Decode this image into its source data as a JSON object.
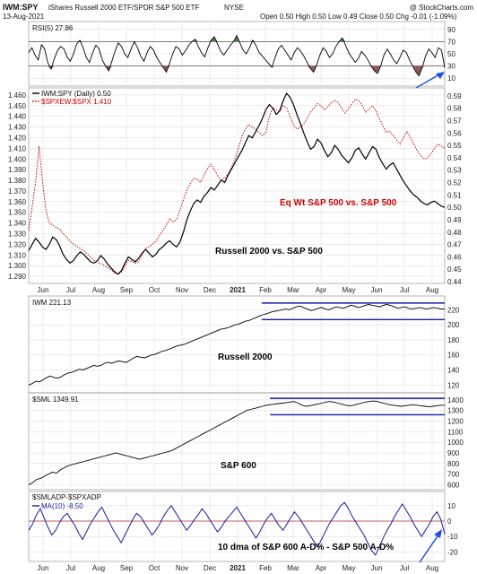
{
  "header": {
    "symbol": "IWM:SPY",
    "description": "iShares Russell 2000 ETF/SPDR S&P 500 ETF",
    "exchange": "NYSE",
    "date": "13-Aug-2021",
    "ohlc": "Open 0.50  High 0.50  Low 0.49  Close 0.50  Chg -0.01 (-1.09%)",
    "watermark": "@ StockCharts.com"
  },
  "colors": {
    "black": "#000000",
    "red": "#cc0000",
    "blue": "#1a1aa6",
    "arrow": "#1f4fe0",
    "green_fill": "#4f7f4f",
    "brown_fill": "#8b5a5a",
    "grid": "#d9d9d9",
    "panel_border": "#888888"
  },
  "x_axis": {
    "months": [
      "Jun",
      "Jul",
      "Aug",
      "Sep",
      "Oct",
      "Nov",
      "Dec",
      "2021",
      "Feb",
      "Mar",
      "Apr",
      "May",
      "Jun",
      "Jul",
      "Aug"
    ]
  },
  "chart_data": [
    {
      "id": "rsi",
      "type": "line",
      "title": "RSI(5) 27.86",
      "ylim": [
        0,
        100
      ],
      "y_ticks": [
        10,
        30,
        50,
        70,
        90
      ],
      "reference_lines": [
        30,
        70
      ],
      "overbought_regions": [
        "Nov",
        "Dec",
        "Mar",
        "May-Jun"
      ],
      "oversold_regions": [
        "Jul",
        "Sep",
        "Mar",
        "Jul"
      ],
      "values": [
        52,
        60,
        48,
        40,
        65,
        58,
        35,
        25,
        42,
        55,
        62,
        58,
        45,
        38,
        50,
        66,
        72,
        60,
        44,
        36,
        52,
        64,
        58,
        40,
        30,
        22,
        38,
        55,
        68,
        62,
        50,
        44,
        58,
        70,
        60,
        46,
        38,
        52,
        62,
        56,
        44,
        36,
        28,
        20,
        34,
        50,
        62,
        58,
        48,
        55,
        64,
        70,
        74,
        62,
        52,
        45,
        60,
        72,
        78,
        66,
        54,
        48,
        56,
        64,
        70,
        80,
        68,
        56,
        50,
        60,
        72,
        64,
        52,
        46,
        40,
        34,
        28,
        44,
        58,
        64,
        56,
        48,
        40,
        52,
        60,
        54,
        46,
        36,
        26,
        20,
        32,
        48,
        60,
        54,
        44,
        50,
        62,
        70,
        76,
        64,
        52,
        44,
        36,
        42,
        54,
        48,
        40,
        30,
        22,
        18,
        30,
        48,
        58,
        50,
        40,
        34,
        44,
        56,
        52,
        40,
        30,
        20,
        14,
        28,
        46,
        58,
        52,
        44,
        60,
        56,
        27.86
      ]
    },
    {
      "id": "ratio",
      "type": "line",
      "ylim": [
        1.285,
        1.465
      ],
      "y2lim": [
        0.44,
        0.595
      ],
      "y_ticks": [
        1.29,
        1.3,
        1.31,
        1.32,
        1.33,
        1.34,
        1.35,
        1.36,
        1.37,
        1.38,
        1.39,
        1.4,
        1.41,
        1.42,
        1.43,
        1.44,
        1.45,
        1.46
      ],
      "y2_ticks": [
        0.44,
        0.45,
        0.46,
        0.47,
        0.48,
        0.49,
        0.5,
        0.51,
        0.52,
        0.53,
        0.54,
        0.55,
        0.56,
        0.57,
        0.58,
        0.59
      ],
      "series": [
        {
          "name": "IWM:SPY (Daily) 0.50",
          "color": "#000000",
          "style": "solid",
          "values": [
            0.465,
            0.47,
            0.475,
            0.472,
            0.468,
            0.466,
            0.47,
            0.476,
            0.474,
            0.469,
            0.462,
            0.458,
            0.455,
            0.457,
            0.461,
            0.464,
            0.462,
            0.459,
            0.456,
            0.455,
            0.457,
            0.461,
            0.458,
            0.454,
            0.451,
            0.448,
            0.446,
            0.449,
            0.455,
            0.46,
            0.458,
            0.456,
            0.459,
            0.463,
            0.466,
            0.463,
            0.46,
            0.462,
            0.466,
            0.468,
            0.471,
            0.473,
            0.47,
            0.468,
            0.472,
            0.48,
            0.49,
            0.497,
            0.503,
            0.506,
            0.504,
            0.509,
            0.512,
            0.516,
            0.514,
            0.518,
            0.522,
            0.52,
            0.526,
            0.531,
            0.536,
            0.541,
            0.546,
            0.552,
            0.558,
            0.556,
            0.561,
            0.566,
            0.572,
            0.579,
            0.583,
            0.58,
            0.575,
            0.578,
            0.586,
            0.592,
            0.589,
            0.583,
            0.575,
            0.568,
            0.56,
            0.553,
            0.547,
            0.549,
            0.555,
            0.552,
            0.546,
            0.541,
            0.544,
            0.55,
            0.547,
            0.542,
            0.539,
            0.536,
            0.54,
            0.546,
            0.548,
            0.543,
            0.539,
            0.544,
            0.549,
            0.547,
            0.54,
            0.535,
            0.531,
            0.534,
            0.536,
            0.531,
            0.526,
            0.521,
            0.517,
            0.513,
            0.51,
            0.508,
            0.505,
            0.503,
            0.502,
            0.504,
            0.505,
            0.503,
            0.501,
            0.5
          ]
        },
        {
          "name": "$SPXEW:$SPX 1.410",
          "color": "#cc0000",
          "style": "dotted",
          "values": [
            1.333,
            1.355,
            1.378,
            1.412,
            1.38,
            1.352,
            1.34,
            1.338,
            1.336,
            1.334,
            1.33,
            1.327,
            1.323,
            1.32,
            1.318,
            1.316,
            1.314,
            1.311,
            1.308,
            1.305,
            1.303,
            1.302,
            1.3,
            1.298,
            1.296,
            1.293,
            1.292,
            1.294,
            1.3,
            1.305,
            1.304,
            1.302,
            1.304,
            1.31,
            1.316,
            1.318,
            1.32,
            1.323,
            1.328,
            1.333,
            1.338,
            1.344,
            1.341,
            1.343,
            1.352,
            1.362,
            1.371,
            1.377,
            1.382,
            1.381,
            1.378,
            1.385,
            1.391,
            1.395,
            1.39,
            1.384,
            1.38,
            1.382,
            1.386,
            1.392,
            1.4,
            1.41,
            1.421,
            1.428,
            1.432,
            1.43,
            1.428,
            1.425,
            1.422,
            1.425,
            1.44,
            1.448,
            1.446,
            1.444,
            1.45,
            1.448,
            1.44,
            1.432,
            1.428,
            1.43,
            1.433,
            1.438,
            1.444,
            1.448,
            1.452,
            1.45,
            1.446,
            1.449,
            1.453,
            1.455,
            1.453,
            1.448,
            1.443,
            1.447,
            1.452,
            1.456,
            1.455,
            1.45,
            1.444,
            1.447,
            1.45,
            1.445,
            1.438,
            1.431,
            1.425,
            1.426,
            1.422,
            1.418,
            1.414,
            1.42,
            1.426,
            1.42,
            1.414,
            1.408,
            1.403,
            1.4,
            1.401,
            1.405,
            1.41,
            1.414,
            1.412,
            1.41
          ]
        }
      ],
      "annotations": [
        "Eq Wt S&P 500 vs. S&P 500",
        "Russell 2000 vs. S&P 500"
      ]
    },
    {
      "id": "iwm",
      "type": "line",
      "title": "IWM 221.13",
      "annotation": "Russell 2000",
      "ylim": [
        112,
        236
      ],
      "y_ticks": [
        120,
        140,
        160,
        180,
        200,
        220
      ],
      "channel": {
        "upper": 229,
        "lower": 207
      },
      "values": [
        120,
        122,
        125,
        124,
        127,
        130,
        132,
        130,
        129,
        131,
        134,
        136,
        137,
        139,
        141,
        140,
        142,
        144,
        146,
        145,
        146,
        149,
        150,
        149,
        151,
        152,
        151,
        150,
        153,
        156,
        158,
        157,
        156,
        158,
        160,
        161,
        163,
        165,
        166,
        168,
        170,
        172,
        173,
        174,
        176,
        178,
        180,
        182,
        184,
        186,
        188,
        190,
        192,
        194,
        195,
        196,
        198,
        200,
        201,
        203,
        205,
        206,
        208,
        210,
        212,
        214,
        215,
        217,
        218,
        219,
        220,
        221,
        220,
        222,
        224,
        225,
        223,
        221,
        219,
        220,
        222,
        223,
        221,
        220,
        222,
        224,
        223,
        222,
        224,
        226,
        225,
        223,
        224,
        226,
        227,
        226,
        225,
        224,
        226,
        227,
        226,
        224,
        222,
        223,
        224,
        222,
        221,
        222,
        223,
        222,
        221,
        222,
        223,
        222,
        221,
        221.13
      ]
    },
    {
      "id": "sml",
      "type": "line",
      "title": "$SML 1349.91",
      "annotation": "S&P 600",
      "ylim": [
        570,
        1450
      ],
      "y_ticks": [
        600,
        700,
        800,
        900,
        1000,
        1100,
        1200,
        1300,
        1400
      ],
      "channel": {
        "upper": 1415,
        "lower": 1260
      },
      "values": [
        600,
        620,
        650,
        660,
        680,
        700,
        720,
        710,
        740,
        760,
        780,
        790,
        800,
        810,
        820,
        830,
        840,
        850,
        860,
        870,
        880,
        890,
        900,
        890,
        880,
        870,
        860,
        850,
        840,
        850,
        860,
        870,
        880,
        890,
        900,
        910,
        920,
        940,
        960,
        980,
        1000,
        1020,
        1040,
        1060,
        1080,
        1100,
        1120,
        1140,
        1160,
        1180,
        1200,
        1220,
        1240,
        1260,
        1280,
        1300,
        1310,
        1320,
        1330,
        1340,
        1350,
        1355,
        1360,
        1365,
        1370,
        1375,
        1380,
        1385,
        1370,
        1350,
        1340,
        1345,
        1355,
        1360,
        1370,
        1380,
        1385,
        1380,
        1370,
        1360,
        1350,
        1345,
        1350,
        1360,
        1370,
        1380,
        1385,
        1390,
        1385,
        1375,
        1365,
        1355,
        1350,
        1345,
        1340,
        1345,
        1350,
        1355,
        1350,
        1345,
        1340,
        1335,
        1340,
        1345,
        1350,
        1349.91
      ]
    },
    {
      "id": "ad",
      "type": "line",
      "title": "$SMLADP-$SPXADP",
      "series_label": "MA(10) -8.50",
      "annotation": "10 dma of S&P 600 A-D% - S&P 500 A-D%",
      "ylim": [
        -25,
        18
      ],
      "y_ticks": [
        -20,
        -10,
        0,
        10
      ],
      "reference_lines": [
        0
      ],
      "values": [
        -6,
        -2,
        4,
        8,
        2,
        -4,
        -9,
        -6,
        -1,
        3,
        5,
        1,
        -3,
        -8,
        -12,
        -7,
        -2,
        2,
        6,
        9,
        4,
        -1,
        -6,
        -10,
        -14,
        -9,
        -4,
        1,
        5,
        3,
        -1,
        -5,
        -9,
        -6,
        -2,
        3,
        7,
        10,
        6,
        2,
        -2,
        -6,
        -3,
        1,
        4,
        8,
        5,
        1,
        -3,
        -7,
        -4,
        0,
        3,
        6,
        9,
        5,
        1,
        -3,
        -7,
        -11,
        -7,
        -2,
        2,
        5,
        1,
        -3,
        -6,
        -2,
        2,
        6,
        3,
        -1,
        -5,
        -9,
        -13,
        -17,
        -12,
        -7,
        -2,
        2,
        6,
        10,
        12,
        8,
        3,
        -1,
        -5,
        -9,
        -14,
        -19,
        -22,
        -17,
        -11,
        -6,
        -2,
        3,
        7,
        11,
        7,
        3,
        -2,
        -6,
        -10,
        -6,
        -2,
        3,
        6,
        1,
        -8.5
      ]
    }
  ]
}
